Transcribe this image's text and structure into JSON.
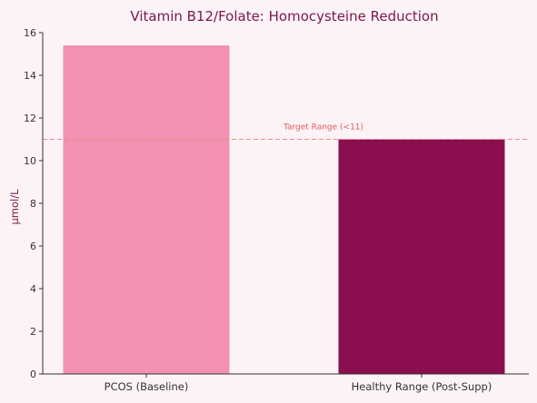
{
  "chart_data": {
    "type": "bar",
    "title": "Vitamin B12/Folate: Homocysteine Reduction",
    "xlabel": "",
    "ylabel": "μmol/L",
    "categories": [
      "PCOS (Baseline)",
      "Healthy Range (Post-Supp)"
    ],
    "values": [
      15.4,
      11.0
    ],
    "bar_colors": [
      "#f291b2",
      "#8b0e4e"
    ],
    "ylim": [
      0,
      16
    ],
    "yticks": [
      0,
      2,
      4,
      6,
      8,
      10,
      12,
      14,
      16
    ],
    "grid": false,
    "reference_line": {
      "value": 11,
      "label": "Target Range (<11)",
      "color": "#ef8a8a",
      "style": "dashed"
    }
  },
  "colors": {
    "background": "#fcf3f7",
    "title": "#7d1749",
    "axis": "#333333"
  }
}
